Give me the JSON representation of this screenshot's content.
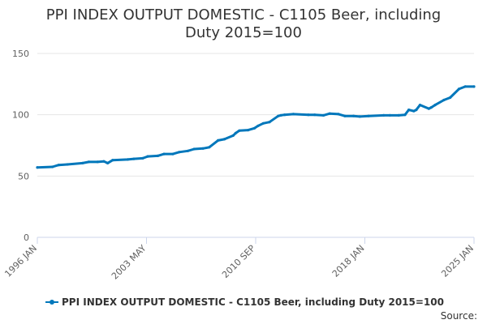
{
  "colors": {
    "series": "#0077bb",
    "grid": "#e6e6e6",
    "axis": "#ccd6eb",
    "text": "#333333",
    "tick": "#606060"
  },
  "footer": {
    "source_label": "Source:"
  },
  "chart_data": {
    "type": "line",
    "title_line1": "PPI INDEX OUTPUT DOMESTIC - C1105 Beer, including",
    "title_line2": "Duty 2015=100",
    "xlabel": "",
    "ylabel": "",
    "ylim": [
      0,
      150
    ],
    "yticks": [
      0,
      50,
      100,
      150
    ],
    "xlim": [
      "1996-01",
      "2025-01"
    ],
    "xticks": [
      "1996 JAN",
      "2003 MAY",
      "2010 SEP",
      "2018 JAN",
      "2025 JAN"
    ],
    "grid": true,
    "legend_position": "bottom-center",
    "series": [
      {
        "name": "PPI INDEX OUTPUT DOMESTIC - C1105 Beer, including Duty 2015=100",
        "x": [
          "1996-01",
          "1997-01",
          "1997-06",
          "1998-01",
          "1999-01",
          "1999-06",
          "2000-01",
          "2000-06",
          "2000-09",
          "2001-01",
          "2002-01",
          "2002-06",
          "2003-01",
          "2003-05",
          "2004-01",
          "2004-06",
          "2005-01",
          "2005-06",
          "2006-01",
          "2006-06",
          "2007-01",
          "2007-06",
          "2008-01",
          "2008-06",
          "2009-01",
          "2009-03",
          "2009-06",
          "2010-01",
          "2010-06",
          "2010-09",
          "2011-01",
          "2011-06",
          "2012-01",
          "2012-03",
          "2012-06",
          "2013-01",
          "2014-01",
          "2014-06",
          "2015-01",
          "2015-06",
          "2016-01",
          "2016-06",
          "2017-01",
          "2017-06",
          "2018-01",
          "2019-01",
          "2019-06",
          "2020-01",
          "2020-06",
          "2020-09",
          "2021-01",
          "2021-03",
          "2021-06",
          "2022-01",
          "2022-03",
          "2022-06",
          "2023-01",
          "2023-06",
          "2024-01",
          "2024-06",
          "2025-01"
        ],
        "values": [
          57,
          57.5,
          59,
          59.5,
          60.5,
          61.5,
          61.5,
          62,
          60.5,
          63,
          63.5,
          64,
          64.5,
          66,
          66.5,
          68,
          68,
          69.5,
          70.5,
          72,
          72.5,
          73.5,
          79,
          80,
          83,
          85,
          87,
          87.5,
          89,
          91,
          93,
          94,
          99,
          99.5,
          100,
          100.5,
          100,
          100,
          99.5,
          101,
          100.5,
          99,
          99,
          98.5,
          99,
          99.5,
          99.5,
          99.5,
          100,
          104,
          103,
          104,
          108,
          105,
          106,
          108,
          112,
          114,
          121,
          123,
          123
        ]
      }
    ]
  }
}
